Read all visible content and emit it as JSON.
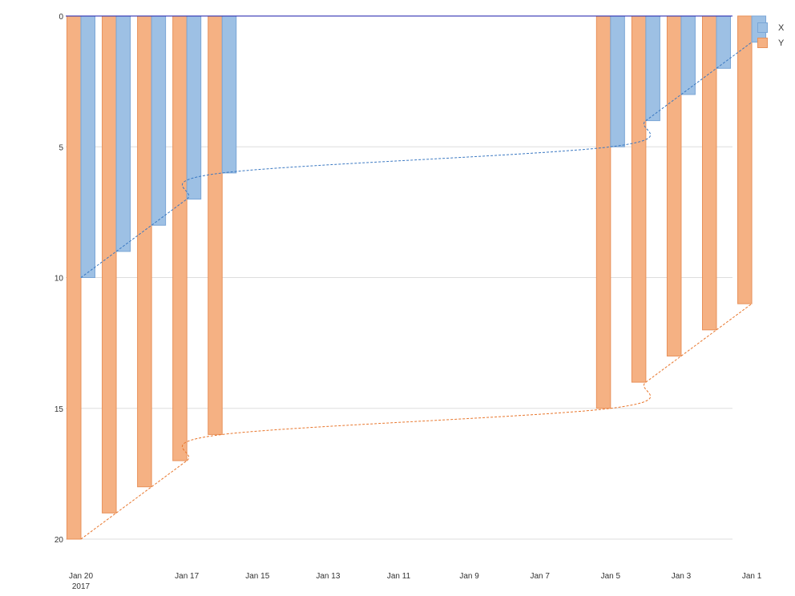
{
  "chart_data": {
    "type": "bar",
    "x_axis": {
      "type": "date",
      "reversed": true,
      "tick_labels": [
        "Jan 20",
        "Jan 17",
        "Jan 15",
        "Jan 13",
        "Jan 11",
        "Jan 9",
        "Jan 7",
        "Jan 5",
        "Jan 3",
        "Jan 1"
      ],
      "year_label": "2017"
    },
    "y_axis": {
      "reversed": true,
      "ylim": [
        0,
        20
      ],
      "ticks": [
        0,
        5,
        10,
        15,
        20
      ],
      "grid": true
    },
    "x": [
      "2017-01-20",
      "2017-01-19",
      "2017-01-18",
      "2017-01-17",
      "2017-01-16",
      "2017-01-05",
      "2017-01-04",
      "2017-01-03",
      "2017-01-02",
      "2017-01-01"
    ],
    "series": [
      {
        "name": "X",
        "color": "#9dc0e4",
        "stroke": "#7aa6d6",
        "trend_color": "#3a78c2",
        "values": [
          10,
          9,
          8,
          7,
          6,
          5,
          4,
          3,
          2,
          1
        ]
      },
      {
        "name": "Y",
        "color": "#f5b183",
        "stroke": "#e8915a",
        "trend_color": "#e8762c",
        "values": [
          20,
          19,
          18,
          17,
          16,
          15,
          14,
          13,
          12,
          11
        ]
      }
    ],
    "trendlines": "dashed",
    "legend_position": "top-right"
  }
}
